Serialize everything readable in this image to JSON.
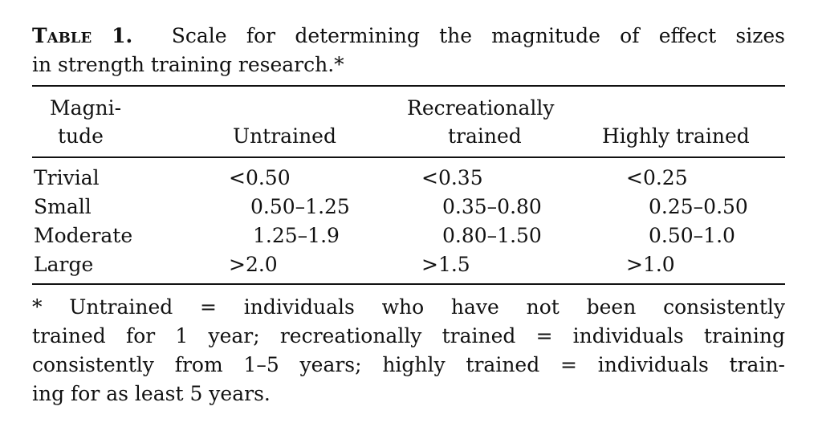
{
  "caption": {
    "label": "Table 1.",
    "line1": "Scale for determining the magnitude of effect sizes",
    "line2": "in strength training research.*"
  },
  "table": {
    "headers": {
      "magnitude_1": "Magni-",
      "magnitude_2": "tude",
      "untrained": "Untrained",
      "recreational_1": "Recreationally",
      "recreational_2": "trained",
      "highly": "Highly trained"
    },
    "rows": [
      {
        "magnitude": "Trivial",
        "untrained": "<0.50",
        "recreational": "<0.35",
        "highly": "<0.25"
      },
      {
        "magnitude": "Small",
        "untrained": "0.50–1.25",
        "recreational": "0.35–0.80",
        "highly": "0.25–0.50"
      },
      {
        "magnitude": "Moderate",
        "untrained": "1.25–1.9",
        "recreational": "0.80–1.50",
        "highly": "0.50–1.0"
      },
      {
        "magnitude": "Large",
        "untrained": ">2.0",
        "recreational": ">1.5",
        "highly": ">1.0"
      }
    ]
  },
  "footnote": {
    "lines": [
      "* Untrained = individuals who have not been consistently",
      "trained for 1 year; recreationally trained = individuals training",
      "consistently from 1–5 years; highly trained = individuals train-",
      "ing for as least 5 years."
    ]
  }
}
